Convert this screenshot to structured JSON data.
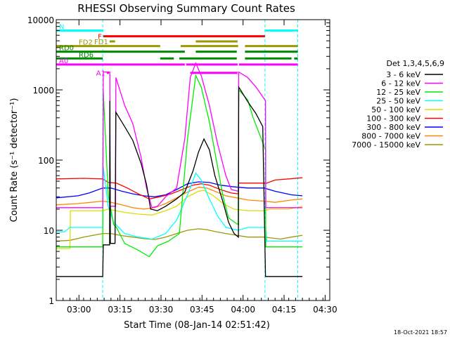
{
  "chart_data": {
    "type": "line",
    "title": "RHESSI Observing Summary Count Rates",
    "xlabel": "Start Time (08-Jan-14 02:51:42)",
    "ylabel": "Count Rate (s⁻¹ detector⁻¹)",
    "timestamp": "18-Oct-2021 18:57",
    "x_units": "minutes from 02:51:42",
    "xlim": [
      0,
      100
    ],
    "ylim": [
      1,
      10000
    ],
    "yscale": "log",
    "x_ticks": [
      {
        "label": "03:00",
        "x": 8.3
      },
      {
        "label": "03:15",
        "x": 23.3
      },
      {
        "label": "03:30",
        "x": 38.3
      },
      {
        "label": "03:45",
        "x": 53.3
      },
      {
        "label": "04:00",
        "x": 68.3
      },
      {
        "label": "04:15",
        "x": 83.3
      },
      {
        "label": "04:30",
        "x": 98.3
      }
    ],
    "y_ticks": [
      {
        "label": "1",
        "y": 1
      },
      {
        "label": "10",
        "y": 10
      },
      {
        "label": "100",
        "y": 100
      },
      {
        "label": "1000",
        "y": 1000
      },
      {
        "label": "10000",
        "y": 10000
      }
    ],
    "legend_title": "Det 1,3,4,5,6,9",
    "legend_position": "right",
    "series": [
      {
        "name": "3 - 6 keV",
        "color": "#000000",
        "points": [
          [
            0,
            2.2
          ],
          [
            17,
            2.2
          ],
          [
            17.2,
            6.2
          ],
          [
            19.5,
            6.2
          ],
          [
            19.6,
            700
          ],
          [
            19.8,
            6.5
          ],
          [
            21.5,
            6.5
          ],
          [
            21.8,
            480
          ],
          [
            25,
            300
          ],
          [
            28,
            190
          ],
          [
            31,
            90
          ],
          [
            33,
            45
          ],
          [
            34.5,
            20
          ],
          [
            37,
            19
          ],
          [
            40,
            22
          ],
          [
            44,
            28
          ],
          [
            47,
            35
          ],
          [
            50,
            70
          ],
          [
            52,
            130
          ],
          [
            54,
            200
          ],
          [
            56,
            140
          ],
          [
            58,
            60
          ],
          [
            61,
            25
          ],
          [
            63,
            13
          ],
          [
            65,
            9
          ],
          [
            66.6,
            8
          ],
          [
            66.7,
            1100
          ],
          [
            70,
            680
          ],
          [
            73,
            460
          ],
          [
            75.5,
            300
          ],
          [
            76.5,
            2.2
          ],
          [
            90,
            2.2
          ]
        ]
      },
      {
        "name": "6 - 12 keV",
        "color": "#ff00ff",
        "points": [
          [
            0,
            21
          ],
          [
            17,
            21
          ],
          [
            17.2,
            1800
          ],
          [
            19.6,
            1800
          ],
          [
            19.7,
            22
          ],
          [
            21.7,
            22
          ],
          [
            21.8,
            1500
          ],
          [
            25,
            600
          ],
          [
            28,
            330
          ],
          [
            31,
            110
          ],
          [
            33,
            40
          ],
          [
            35,
            21
          ],
          [
            37,
            22
          ],
          [
            40,
            30
          ],
          [
            44,
            40
          ],
          [
            47,
            200
          ],
          [
            49,
            1500
          ],
          [
            51,
            2400
          ],
          [
            53,
            1600
          ],
          [
            56,
            600
          ],
          [
            59,
            170
          ],
          [
            62,
            60
          ],
          [
            64,
            38
          ],
          [
            66.6,
            36
          ],
          [
            66.7,
            1800
          ],
          [
            70,
            1500
          ],
          [
            73,
            1100
          ],
          [
            76.5,
            700
          ],
          [
            76.6,
            21
          ],
          [
            90,
            21
          ]
        ]
      },
      {
        "name": "12 - 25 keV",
        "color": "#00ee00",
        "points": [
          [
            0,
            5.8
          ],
          [
            17,
            5.8
          ],
          [
            17.2,
            950
          ],
          [
            19,
            32
          ],
          [
            21,
            12
          ],
          [
            22,
            11
          ],
          [
            25,
            6.5
          ],
          [
            30,
            5.2
          ],
          [
            34,
            4.2
          ],
          [
            37,
            6
          ],
          [
            41,
            7
          ],
          [
            45,
            9
          ],
          [
            48,
            200
          ],
          [
            51,
            1600
          ],
          [
            53,
            1100
          ],
          [
            56,
            350
          ],
          [
            59,
            80
          ],
          [
            61,
            30
          ],
          [
            63,
            15
          ],
          [
            66.5,
            12
          ],
          [
            66.7,
            1000
          ],
          [
            70,
            720
          ],
          [
            72,
            400
          ],
          [
            76.5,
            140
          ],
          [
            76.6,
            5.8
          ],
          [
            90,
            5.8
          ]
        ]
      },
      {
        "name": "25 - 50 keV",
        "color": "#00ffff",
        "points": [
          [
            0,
            9.5
          ],
          [
            3,
            9.5
          ],
          [
            5,
            11
          ],
          [
            17,
            11
          ],
          [
            17.2,
            80
          ],
          [
            19,
            22
          ],
          [
            21,
            13
          ],
          [
            25,
            9
          ],
          [
            30,
            8
          ],
          [
            35,
            7.5
          ],
          [
            40,
            9
          ],
          [
            44,
            14
          ],
          [
            48,
            32
          ],
          [
            51,
            65
          ],
          [
            53,
            52
          ],
          [
            56,
            28
          ],
          [
            59,
            16
          ],
          [
            62,
            11
          ],
          [
            66.5,
            10
          ],
          [
            70,
            11
          ],
          [
            76.5,
            11
          ],
          [
            77,
            7
          ],
          [
            90,
            7
          ]
        ]
      },
      {
        "name": "50 - 100 keV",
        "color": "#dddd00",
        "points": [
          [
            0,
            5.5
          ],
          [
            5,
            5.5
          ],
          [
            5.2,
            19
          ],
          [
            17,
            19
          ],
          [
            19,
            20
          ],
          [
            25,
            18
          ],
          [
            30,
            17
          ],
          [
            35,
            16.5
          ],
          [
            40,
            19
          ],
          [
            44,
            22
          ],
          [
            48,
            30
          ],
          [
            52,
            36
          ],
          [
            54,
            37
          ],
          [
            57,
            32
          ],
          [
            61,
            24
          ],
          [
            65,
            20
          ],
          [
            70,
            19
          ],
          [
            76,
            19
          ],
          [
            78,
            20
          ],
          [
            85,
            20
          ],
          [
            90,
            22
          ]
        ]
      },
      {
        "name": "100 - 300 keV",
        "color": "#ff0000",
        "points": [
          [
            0,
            54
          ],
          [
            10,
            55
          ],
          [
            17,
            54
          ],
          [
            19,
            48
          ],
          [
            22,
            47
          ],
          [
            26,
            40
          ],
          [
            30,
            33
          ],
          [
            34,
            28
          ],
          [
            38,
            30
          ],
          [
            42,
            33
          ],
          [
            46,
            38
          ],
          [
            50,
            44
          ],
          [
            53,
            46
          ],
          [
            56,
            44
          ],
          [
            60,
            38
          ],
          [
            64,
            34
          ],
          [
            66.5,
            33
          ],
          [
            66.6,
            47
          ],
          [
            72,
            47
          ],
          [
            77,
            47
          ],
          [
            80,
            52
          ],
          [
            85,
            54
          ],
          [
            90,
            56
          ]
        ]
      },
      {
        "name": "300 - 800 keV",
        "color": "#0000ff",
        "points": [
          [
            0,
            29
          ],
          [
            8,
            31
          ],
          [
            12,
            34
          ],
          [
            17,
            40
          ],
          [
            20,
            40
          ],
          [
            24,
            36
          ],
          [
            28,
            33
          ],
          [
            32,
            31
          ],
          [
            36,
            30
          ],
          [
            40,
            32
          ],
          [
            44,
            38
          ],
          [
            48,
            46
          ],
          [
            52,
            49
          ],
          [
            56,
            48
          ],
          [
            60,
            44
          ],
          [
            64,
            42
          ],
          [
            66.5,
            41
          ],
          [
            70,
            40
          ],
          [
            76,
            40
          ],
          [
            80,
            36
          ],
          [
            86,
            32
          ],
          [
            90,
            31
          ]
        ]
      },
      {
        "name": "800 - 7000 keV",
        "color": "#ff8800",
        "points": [
          [
            0,
            23
          ],
          [
            8,
            24
          ],
          [
            17,
            26
          ],
          [
            20,
            25
          ],
          [
            24,
            23
          ],
          [
            28,
            21
          ],
          [
            32,
            20
          ],
          [
            36,
            21
          ],
          [
            40,
            24
          ],
          [
            44,
            29
          ],
          [
            48,
            35
          ],
          [
            52,
            41
          ],
          [
            55,
            40
          ],
          [
            58,
            36
          ],
          [
            62,
            31
          ],
          [
            66,
            29
          ],
          [
            70,
            27
          ],
          [
            76,
            26
          ],
          [
            80,
            25
          ],
          [
            86,
            27
          ],
          [
            90,
            28
          ]
        ]
      },
      {
        "name": "7000 - 15000 keV",
        "color": "#999900",
        "points": [
          [
            0,
            7
          ],
          [
            5,
            7.2
          ],
          [
            10,
            8
          ],
          [
            17,
            9
          ],
          [
            20,
            9
          ],
          [
            24,
            8.4
          ],
          [
            28,
            8
          ],
          [
            32,
            7.6
          ],
          [
            36,
            7.4
          ],
          [
            40,
            8
          ],
          [
            44,
            9
          ],
          [
            48,
            10
          ],
          [
            52,
            10.5
          ],
          [
            55,
            10.2
          ],
          [
            58,
            9.6
          ],
          [
            62,
            9
          ],
          [
            66,
            8.5
          ],
          [
            70,
            8
          ],
          [
            76,
            8
          ],
          [
            82,
            7.5
          ],
          [
            86,
            8
          ],
          [
            90,
            8.5
          ]
        ]
      }
    ],
    "vertical_markers": [
      {
        "color": "#00ffff",
        "x": 17.0
      },
      {
        "color": "#00ffff",
        "x": 76.3
      },
      {
        "color": "#00ffff",
        "x": 88.3
      }
    ],
    "state_bars": [
      {
        "label": "N",
        "color": "#00ffff",
        "y": 7000,
        "segments": [
          [
            0,
            17.2
          ],
          [
            76.3,
            88.3
          ]
        ]
      },
      {
        "label": "F",
        "color": "#ff0000",
        "y": 5800,
        "segments": [
          [
            17.2,
            76.3
          ]
        ]
      },
      {
        "label": "FD1",
        "color": "#999900",
        "y": 4900,
        "segments": [
          [
            19.5,
            21.5
          ],
          [
            51,
            66.3
          ]
        ]
      },
      {
        "label": "FD2",
        "color": "#999900",
        "y": 4200,
        "segments": [
          [
            0,
            38
          ],
          [
            45.5,
            66.5
          ],
          [
            69,
            88.3
          ]
        ]
      },
      {
        "label": "RD0",
        "color": "#008800",
        "y": 3500,
        "segments": [
          [
            0,
            47
          ],
          [
            51,
            66
          ],
          [
            69,
            88.3
          ]
        ]
      },
      {
        "label": "RD6",
        "color": "#008800",
        "y": 2800,
        "segments": [
          [
            0,
            17
          ],
          [
            38,
            43
          ],
          [
            45,
            66
          ],
          [
            69,
            86
          ],
          [
            87,
            88.3
          ]
        ]
      },
      {
        "label": "A0",
        "color": "#ff00ff",
        "y": 2300,
        "segments": [
          [
            0,
            47
          ],
          [
            47.5,
            66.3
          ],
          [
            66.8,
            88.3
          ]
        ]
      },
      {
        "label": "A1",
        "color": "#ff00ff",
        "y": 1750,
        "segments": [
          [
            18.5,
            19.3
          ],
          [
            49,
            66.3
          ]
        ]
      }
    ]
  }
}
